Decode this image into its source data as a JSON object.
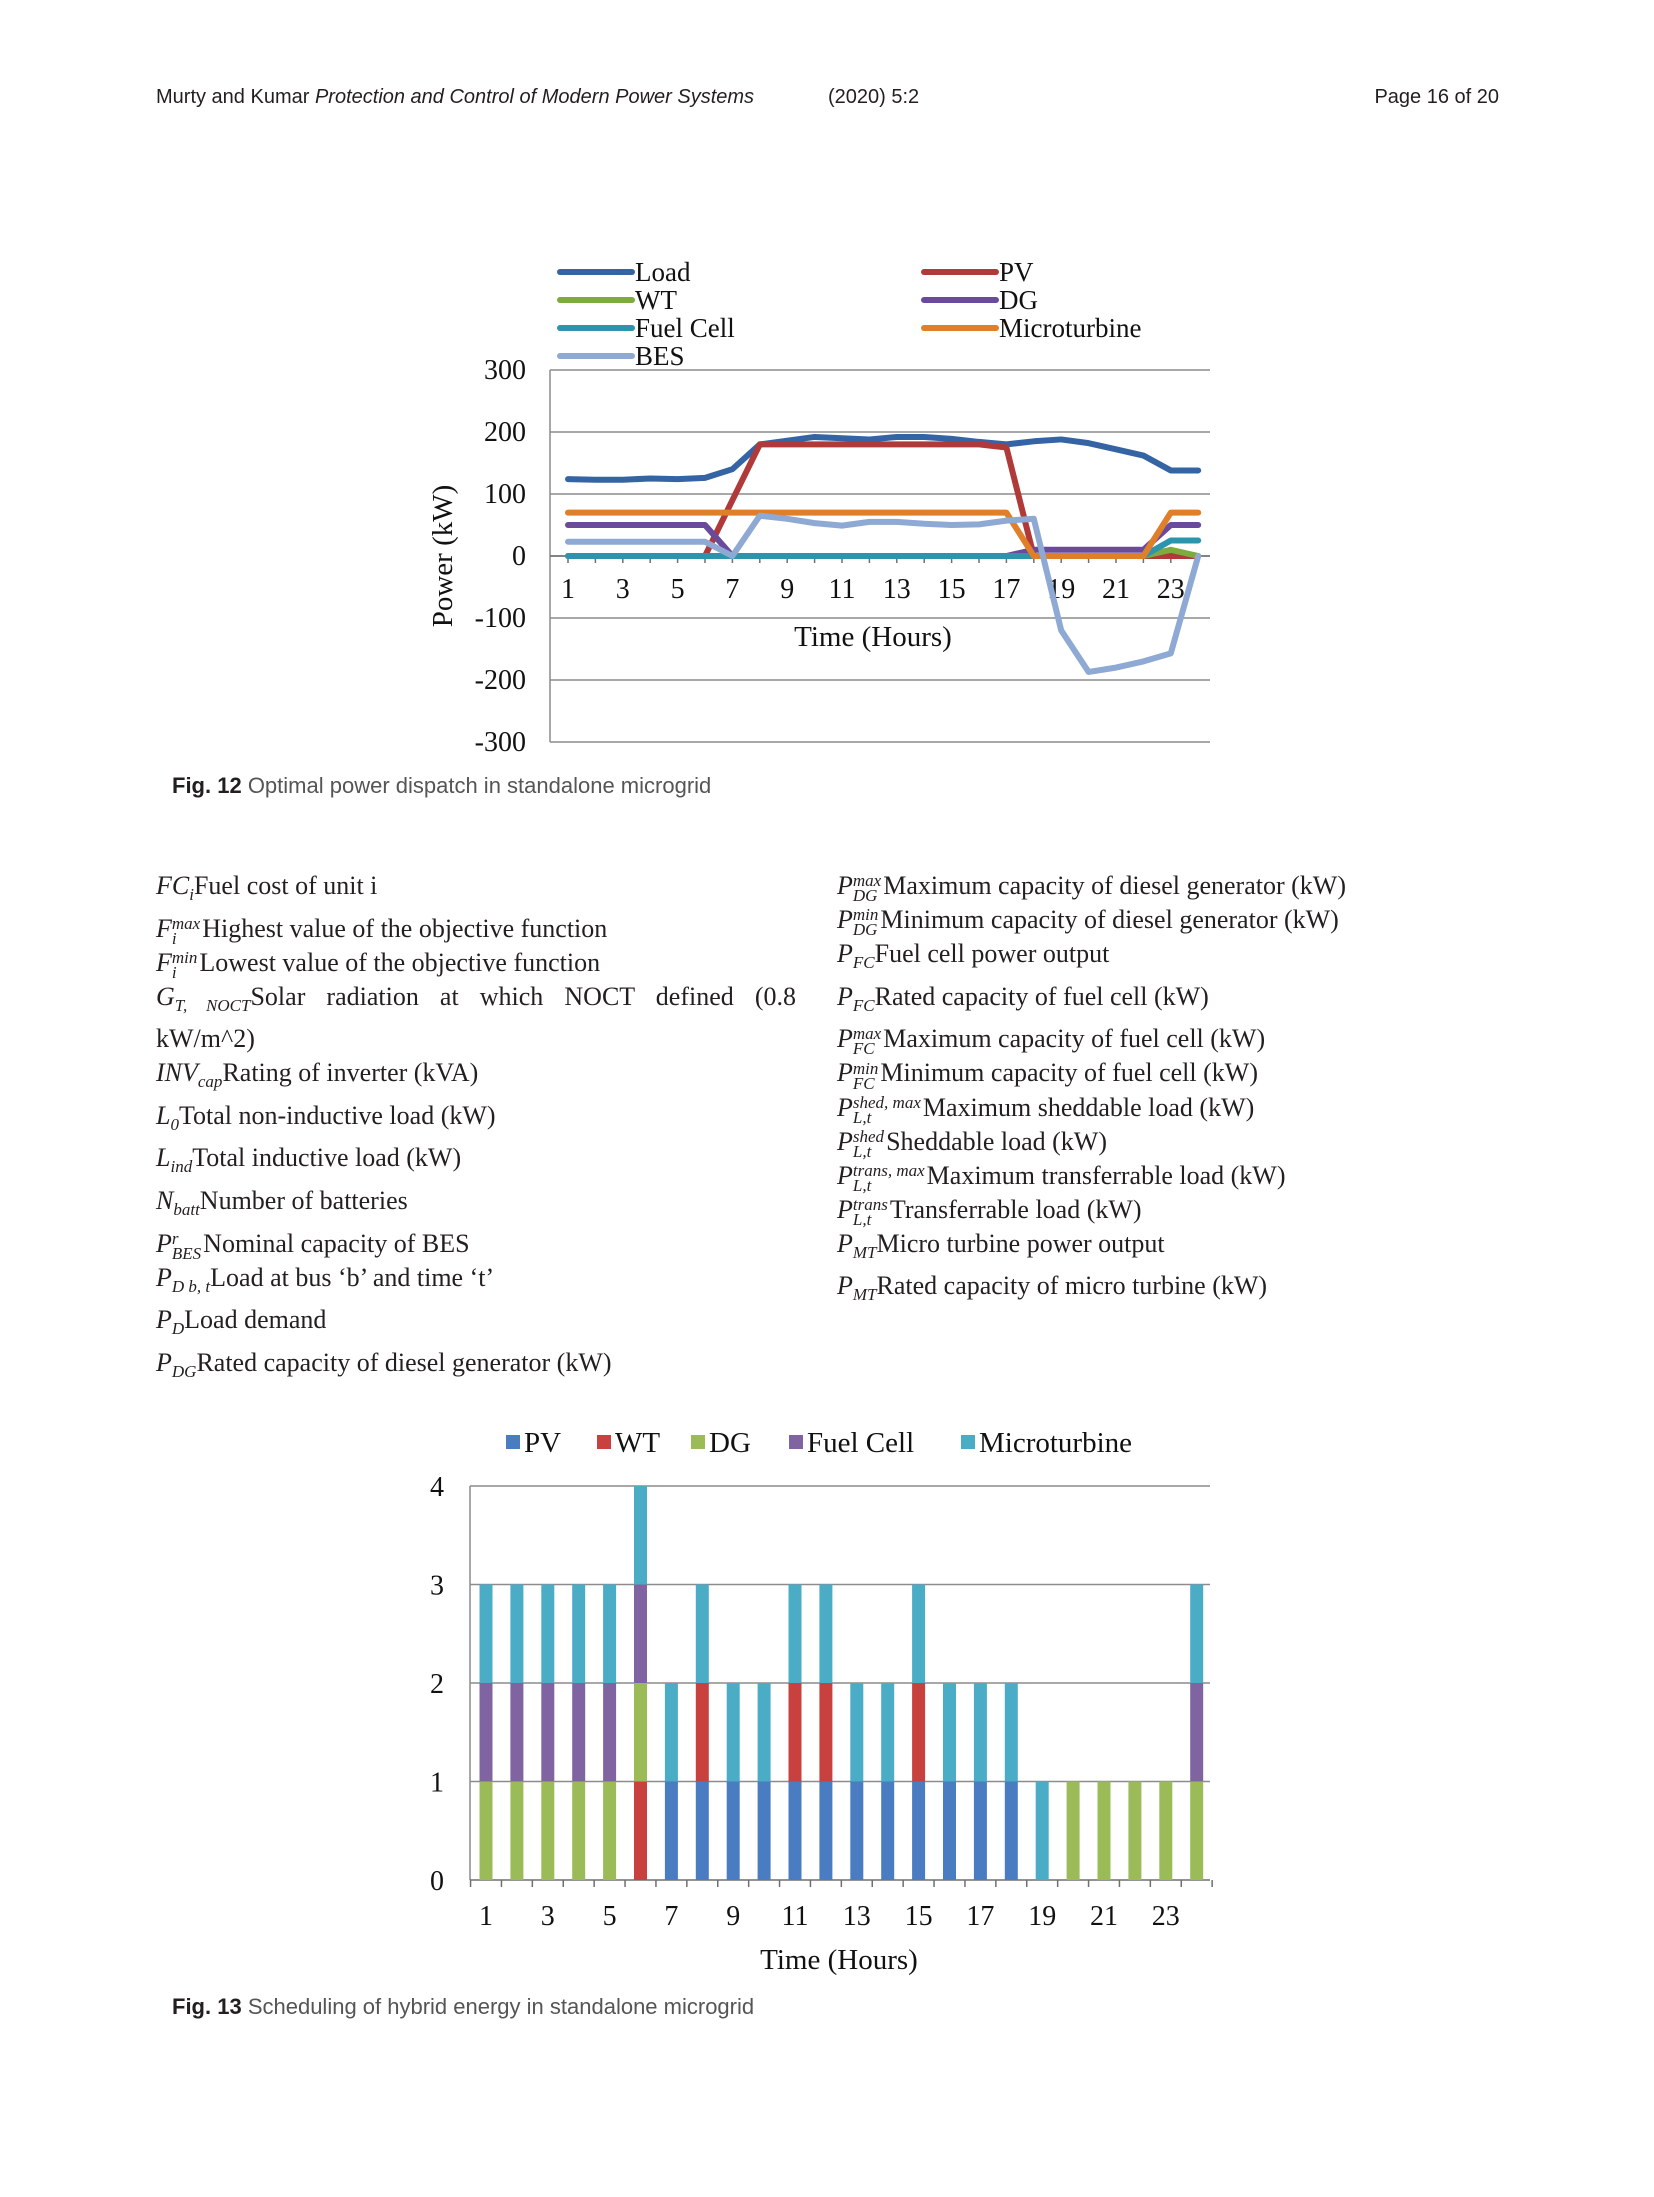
{
  "header": {
    "authors": "Murty and Kumar",
    "journal": "Protection and Control of Modern Power Systems",
    "issue": "(2020) 5:2",
    "page": "Page 16 of 20"
  },
  "figure12": {
    "label": "Fig. 12",
    "caption": "Optimal power dispatch in standalone microgrid"
  },
  "figure13": {
    "label": "Fig. 13",
    "caption": "Scheduling of hybrid energy in standalone microgrid"
  },
  "nomenclature": {
    "left": [
      {
        "sym": "FC",
        "sub": "i",
        "sup": "",
        "desc": "Fuel cost of unit i"
      },
      {
        "sym": "F",
        "sub": "i",
        "sup": "max",
        "desc": "Highest value of the objective function"
      },
      {
        "sym": "F",
        "sub": "i",
        "sup": "min",
        "desc": "Lowest value of the objective function"
      },
      {
        "sym": "G",
        "sub": "T, NOCT",
        "sup": "",
        "desc": "Solar radiation at which NOCT defined (0.8 kW/m^2)"
      },
      {
        "sym": "INV",
        "sub": "cap",
        "sup": "",
        "desc": "Rating of inverter (kVA)"
      },
      {
        "sym": "L",
        "sub": "0",
        "sup": "",
        "desc": "Total non-inductive load (kW)"
      },
      {
        "sym": "L",
        "sub": "ind",
        "sup": "",
        "desc": "Total inductive load (kW)"
      },
      {
        "sym": "N",
        "sub": "batt",
        "sup": "",
        "desc": "Number of batteries"
      },
      {
        "sym": "P",
        "sub": "BES",
        "sup": "r",
        "desc": "Nominal capacity of BES"
      },
      {
        "sym": "P",
        "sub": "D b, t",
        "sup": "",
        "desc": "Load at bus ‘b’ and time ‘t’"
      },
      {
        "sym": "P",
        "sub": "D",
        "sup": "",
        "desc": "Load demand"
      },
      {
        "sym": "P",
        "sub": "DG",
        "sup": "",
        "desc": "Rated capacity of diesel generator (kW)"
      }
    ],
    "right": [
      {
        "sym": "P",
        "sub": "DG",
        "sup": "max",
        "desc": "Maximum capacity of diesel generator (kW)"
      },
      {
        "sym": "P",
        "sub": "DG",
        "sup": "min",
        "desc": "Minimum capacity of diesel generator (kW)"
      },
      {
        "sym": "P",
        "sub": "FC",
        "sup": "",
        "desc": "Fuel cell power output"
      },
      {
        "sym": "P",
        "sub": "FC",
        "sup": "",
        "desc": "Rated capacity of fuel cell (kW)"
      },
      {
        "sym": "P",
        "sub": "FC",
        "sup": "max",
        "desc": "Maximum capacity of fuel cell (kW)"
      },
      {
        "sym": "P",
        "sub": "FC",
        "sup": "min",
        "desc": "Minimum capacity of fuel cell (kW)"
      },
      {
        "sym": "P",
        "sub": "L,t",
        "sup": "shed, max",
        "desc": "Maximum sheddable load (kW)"
      },
      {
        "sym": "P",
        "sub": "L,t",
        "sup": "shed",
        "desc": "Sheddable load (kW)"
      },
      {
        "sym": "P",
        "sub": "L,t",
        "sup": "trans, max",
        "desc": "Maximum transferrable load (kW)"
      },
      {
        "sym": "P",
        "sub": "L,t",
        "sup": "trans",
        "desc": "Transferrable load (kW)"
      },
      {
        "sym": "P",
        "sub": "MT",
        "sup": "",
        "desc": "Micro turbine power output"
      },
      {
        "sym": "P",
        "sub": "MT",
        "sup": "",
        "desc": "Rated capacity of micro turbine (kW)"
      }
    ]
  },
  "chart_data": [
    {
      "type": "line",
      "title": "",
      "xlabel": "Time (Hours)",
      "ylabel": "Power (kW)",
      "x": [
        1,
        2,
        3,
        4,
        5,
        6,
        7,
        8,
        9,
        10,
        11,
        12,
        13,
        14,
        15,
        16,
        17,
        18,
        19,
        20,
        21,
        22,
        23,
        24
      ],
      "xticks": [
        1,
        3,
        5,
        7,
        9,
        11,
        13,
        15,
        17,
        19,
        21,
        23
      ],
      "ylim": [
        -300,
        300
      ],
      "yticks": [
        -300,
        -200,
        -100,
        0,
        100,
        200,
        300
      ],
      "grid": true,
      "legend_position": "top",
      "series": [
        {
          "name": "Load",
          "color": "#3464a4",
          "values": [
            124,
            123,
            123,
            125,
            124,
            126,
            140,
            180,
            186,
            192,
            190,
            188,
            192,
            192,
            189,
            184,
            180,
            185,
            188,
            182,
            172,
            162,
            138,
            138
          ]
        },
        {
          "name": "PV",
          "color": "#b03a3a",
          "values": [
            0,
            0,
            0,
            0,
            0,
            0,
            90,
            180,
            180,
            180,
            180,
            180,
            180,
            180,
            180,
            180,
            175,
            0,
            0,
            0,
            0,
            0,
            0,
            0
          ]
        },
        {
          "name": "WT",
          "color": "#7dab3e",
          "values": [
            0,
            0,
            0,
            0,
            0,
            0,
            0,
            0,
            0,
            0,
            0,
            0,
            0,
            0,
            0,
            0,
            0,
            0,
            0,
            0,
            0,
            0,
            10,
            0
          ]
        },
        {
          "name": "DG",
          "color": "#6a4a9a",
          "values": [
            50,
            50,
            50,
            50,
            50,
            50,
            0,
            0,
            0,
            0,
            0,
            0,
            0,
            0,
            0,
            0,
            0,
            10,
            10,
            10,
            10,
            10,
            50,
            50
          ]
        },
        {
          "name": "Fuel Cell",
          "color": "#2e94ae",
          "values": [
            0,
            0,
            0,
            0,
            0,
            0,
            0,
            0,
            0,
            0,
            0,
            0,
            0,
            0,
            0,
            0,
            0,
            0,
            0,
            0,
            0,
            0,
            25,
            25
          ]
        },
        {
          "name": "Microturbine",
          "color": "#e07f2a",
          "values": [
            70,
            70,
            70,
            70,
            70,
            70,
            70,
            70,
            70,
            70,
            70,
            70,
            70,
            70,
            70,
            70,
            70,
            0,
            0,
            0,
            0,
            0,
            70,
            70
          ]
        },
        {
          "name": "BES",
          "color": "#8ea9d3",
          "values": [
            23,
            23,
            23,
            23,
            23,
            23,
            0,
            65,
            60,
            53,
            49,
            55,
            55,
            52,
            50,
            51,
            57,
            60,
            -120,
            -187,
            -180,
            -170,
            -157,
            0
          ]
        }
      ]
    },
    {
      "type": "bar",
      "stacked": true,
      "title": "",
      "xlabel": "Time (Hours)",
      "ylabel": "",
      "categories": [
        1,
        2,
        3,
        4,
        5,
        6,
        7,
        8,
        9,
        10,
        11,
        12,
        13,
        14,
        15,
        16,
        17,
        18,
        19,
        20,
        21,
        22,
        23,
        24
      ],
      "xticks": [
        1,
        3,
        5,
        7,
        9,
        11,
        13,
        15,
        17,
        19,
        21,
        23
      ],
      "ylim": [
        0,
        4
      ],
      "yticks": [
        0,
        1,
        2,
        3,
        4
      ],
      "grid": true,
      "legend_position": "top",
      "series": [
        {
          "name": "PV",
          "color": "#4a7cc2",
          "values": [
            0,
            0,
            0,
            0,
            0,
            0,
            1,
            1,
            1,
            1,
            1,
            1,
            1,
            1,
            1,
            1,
            1,
            1,
            0,
            0,
            0,
            0,
            0,
            0
          ]
        },
        {
          "name": "WT",
          "color": "#c9413e",
          "values": [
            0,
            0,
            0,
            0,
            0,
            1,
            0,
            1,
            0,
            0,
            1,
            1,
            0,
            0,
            1,
            0,
            0,
            0,
            0,
            0,
            0,
            0,
            0,
            0
          ]
        },
        {
          "name": "DG",
          "color": "#9bbb59",
          "values": [
            1,
            1,
            1,
            1,
            1,
            1,
            0,
            0,
            0,
            0,
            0,
            0,
            0,
            0,
            0,
            0,
            0,
            0,
            0,
            1,
            1,
            1,
            1,
            1
          ]
        },
        {
          "name": "Fuel Cell",
          "color": "#8064a2",
          "values": [
            1,
            1,
            1,
            1,
            1,
            1,
            0,
            0,
            0,
            0,
            0,
            0,
            0,
            0,
            0,
            0,
            0,
            0,
            0,
            0,
            0,
            0,
            0,
            1
          ]
        },
        {
          "name": "Microturbine",
          "color": "#4bacc6",
          "values": [
            1,
            1,
            1,
            1,
            1,
            1,
            1,
            1,
            1,
            1,
            1,
            1,
            1,
            1,
            1,
            1,
            1,
            1,
            1,
            0,
            0,
            0,
            0,
            1
          ]
        }
      ]
    }
  ]
}
